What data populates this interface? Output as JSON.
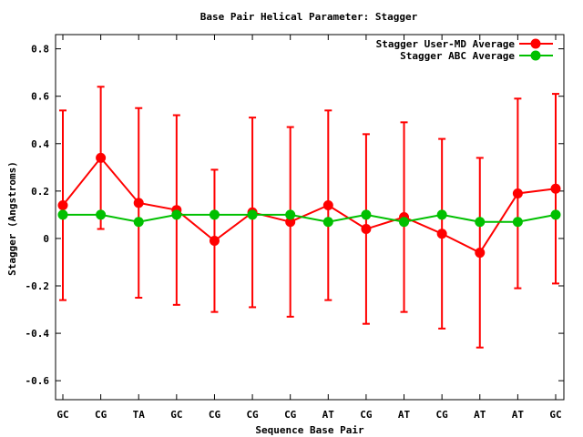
{
  "chart_data": {
    "type": "line",
    "title": "Base Pair Helical Parameter: Stagger",
    "xlabel": "Sequence Base Pair",
    "ylabel": "Stagger (Angstroms)",
    "categories": [
      "GC",
      "CG",
      "TA",
      "GC",
      "CG",
      "CG",
      "CG",
      "AT",
      "CG",
      "AT",
      "CG",
      "AT",
      "AT",
      "GC"
    ],
    "ylim": [
      -0.68,
      0.86
    ],
    "yticks": [
      -0.6,
      -0.4,
      -0.2,
      0,
      0.2,
      0.4,
      0.6,
      0.8
    ],
    "ytick_labels": [
      "-0.6",
      "-0.4",
      "-0.2",
      "0",
      "0.2",
      "0.4",
      "0.6",
      "0.8"
    ],
    "grid": false,
    "legend_position": "top-right",
    "series": [
      {
        "name": "Stagger User-MD Average",
        "color": "#ff0000",
        "values": [
          0.14,
          0.34,
          0.15,
          0.12,
          -0.01,
          0.11,
          0.07,
          0.14,
          0.04,
          0.09,
          0.02,
          -0.06,
          0.19,
          0.21
        ],
        "error": [
          0.4,
          0.3,
          0.4,
          0.4,
          0.3,
          0.4,
          0.4,
          0.4,
          0.4,
          0.4,
          0.4,
          0.4,
          0.4,
          0.4
        ]
      },
      {
        "name": "Stagger ABC Average",
        "color": "#00c000",
        "values": [
          0.1,
          0.1,
          0.07,
          0.1,
          0.1,
          0.1,
          0.1,
          0.07,
          0.1,
          0.07,
          0.1,
          0.07,
          0.07,
          0.1
        ]
      }
    ]
  }
}
